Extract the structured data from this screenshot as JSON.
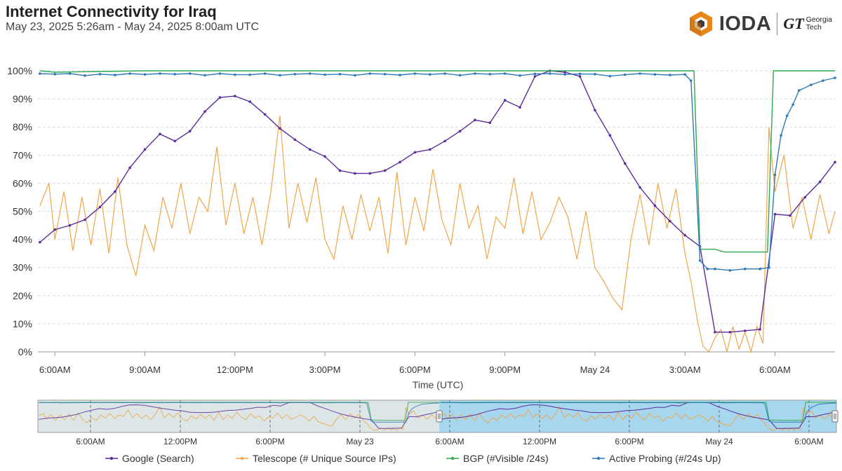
{
  "header": {
    "title": "Internet Connectivity for Iraq",
    "subtitle": "May 23, 2025 5:26am - May 24, 2025 8:00am UTC",
    "logo_name": "IODA",
    "partner_mark": "GT",
    "partner_line1": "Georgia",
    "partner_line2": "Tech"
  },
  "colors": {
    "google": "#5b2c9c",
    "telescope": "#f0a64a",
    "bgp": "#2fa84f",
    "probing": "#2f7ab8",
    "logo_orange": "#e8861a"
  },
  "icons": [
    "ioda-hexagon-icon",
    "georgia-tech-icon",
    "brush-handle-icon"
  ],
  "chart_data": {
    "type": "line",
    "title": "Internet Connectivity for Iraq",
    "xlabel": "Time (UTC)",
    "ylabel": "",
    "ylim": [
      0,
      100
    ],
    "y_unit": "%",
    "y_ticks": [
      "0%",
      "10%",
      "20%",
      "30%",
      "40%",
      "50%",
      "60%",
      "70%",
      "80%",
      "90%",
      "100%"
    ],
    "x_ticks": [
      {
        "label": "6:00AM",
        "h": 0
      },
      {
        "label": "9:00AM",
        "h": 3
      },
      {
        "label": "12:00PM",
        "h": 6
      },
      {
        "label": "3:00PM",
        "h": 9
      },
      {
        "label": "6:00PM",
        "h": 12
      },
      {
        "label": "9:00PM",
        "h": 15
      },
      {
        "label": "May 24",
        "h": 18
      },
      {
        "label": "3:00AM",
        "h": 21
      },
      {
        "label": "6:00AM",
        "h": 24
      }
    ],
    "x_range_hours_from_2025_05_23_06_00": [
      -0.567,
      26.0
    ],
    "grid": true,
    "legend_position": "bottom",
    "series": [
      {
        "key": "google",
        "name": "Google (Search)",
        "points": [
          [
            -0.5,
            39
          ],
          [
            0,
            43.5
          ],
          [
            0.5,
            45
          ],
          [
            1,
            47
          ],
          [
            1.5,
            51.5
          ],
          [
            2,
            57
          ],
          [
            2.5,
            65.5
          ],
          [
            3,
            72
          ],
          [
            3.5,
            77.5
          ],
          [
            4,
            75
          ],
          [
            4.5,
            78.5
          ],
          [
            5,
            85.5
          ],
          [
            5.5,
            90.5
          ],
          [
            6,
            91
          ],
          [
            6.5,
            89
          ],
          [
            7,
            84.5
          ],
          [
            7.5,
            79.5
          ],
          [
            8,
            75.5
          ],
          [
            8.5,
            72
          ],
          [
            9,
            69.5
          ],
          [
            9.5,
            64.5
          ],
          [
            10,
            63.5
          ],
          [
            10.5,
            63.5
          ],
          [
            11,
            64.5
          ],
          [
            11.5,
            67.5
          ],
          [
            12,
            71
          ],
          [
            12.5,
            72
          ],
          [
            13,
            75
          ],
          [
            13.5,
            78.5
          ],
          [
            14,
            82.5
          ],
          [
            14.5,
            81.5
          ],
          [
            15,
            89.5
          ],
          [
            15.5,
            87
          ],
          [
            16,
            98
          ],
          [
            16.5,
            100
          ],
          [
            17,
            99.5
          ],
          [
            17.5,
            98
          ],
          [
            18,
            86
          ],
          [
            18.5,
            77
          ],
          [
            19,
            67
          ],
          [
            19.5,
            58.5
          ],
          [
            20,
            52
          ],
          [
            20.5,
            46.5
          ],
          [
            21,
            41.5
          ],
          [
            21.5,
            37.5
          ],
          [
            22,
            7
          ],
          [
            22.5,
            7
          ],
          [
            23,
            7.5
          ],
          [
            23.5,
            8
          ],
          [
            24,
            49
          ],
          [
            24.5,
            48.5
          ],
          [
            25,
            55
          ],
          [
            25.5,
            60.5
          ],
          [
            26,
            67.5
          ]
        ]
      },
      {
        "key": "telescope",
        "name": "Telescope (# Unique Source IPs)",
        "points": [
          [
            -0.5,
            52
          ],
          [
            -0.2,
            60
          ],
          [
            0,
            40
          ],
          [
            0.3,
            57
          ],
          [
            0.6,
            36
          ],
          [
            0.9,
            55
          ],
          [
            1.2,
            38
          ],
          [
            1.5,
            58
          ],
          [
            1.8,
            35
          ],
          [
            2.1,
            62
          ],
          [
            2.4,
            38
          ],
          [
            2.7,
            27
          ],
          [
            3,
            45
          ],
          [
            3.3,
            36
          ],
          [
            3.6,
            55
          ],
          [
            3.9,
            44
          ],
          [
            4.2,
            60
          ],
          [
            4.5,
            42
          ],
          [
            4.8,
            55
          ],
          [
            5.1,
            50
          ],
          [
            5.4,
            73
          ],
          [
            5.7,
            45
          ],
          [
            6,
            60
          ],
          [
            6.3,
            42
          ],
          [
            6.6,
            55
          ],
          [
            6.9,
            38
          ],
          [
            7.2,
            57
          ],
          [
            7.5,
            84
          ],
          [
            7.8,
            44
          ],
          [
            8.1,
            60
          ],
          [
            8.4,
            46
          ],
          [
            8.7,
            62
          ],
          [
            9,
            40
          ],
          [
            9.3,
            33
          ],
          [
            9.6,
            52
          ],
          [
            9.9,
            40
          ],
          [
            10.2,
            56
          ],
          [
            10.5,
            43
          ],
          [
            10.8,
            55
          ],
          [
            11.1,
            35
          ],
          [
            11.4,
            64
          ],
          [
            11.7,
            38
          ],
          [
            12,
            55
          ],
          [
            12.3,
            43
          ],
          [
            12.6,
            65
          ],
          [
            12.9,
            47
          ],
          [
            13.2,
            38
          ],
          [
            13.5,
            60
          ],
          [
            13.8,
            44
          ],
          [
            14.1,
            52
          ],
          [
            14.4,
            33
          ],
          [
            14.7,
            48
          ],
          [
            15,
            44
          ],
          [
            15.3,
            62
          ],
          [
            15.6,
            42
          ],
          [
            15.9,
            57
          ],
          [
            16.2,
            40
          ],
          [
            16.5,
            46
          ],
          [
            16.8,
            55
          ],
          [
            17.1,
            48
          ],
          [
            17.4,
            33
          ],
          [
            17.7,
            50
          ],
          [
            18,
            30
          ],
          [
            18.3,
            25
          ],
          [
            18.6,
            19
          ],
          [
            18.9,
            15
          ],
          [
            19.2,
            40
          ],
          [
            19.5,
            56
          ],
          [
            19.8,
            38
          ],
          [
            20.1,
            60
          ],
          [
            20.4,
            44
          ],
          [
            20.7,
            58
          ],
          [
            21,
            35
          ],
          [
            21.2,
            25
          ],
          [
            21.4,
            12
          ],
          [
            21.6,
            2
          ],
          [
            21.8,
            0
          ],
          [
            22,
            5
          ],
          [
            22.2,
            8
          ],
          [
            22.4,
            0
          ],
          [
            22.6,
            9
          ],
          [
            22.8,
            1
          ],
          [
            23,
            7
          ],
          [
            23.2,
            0
          ],
          [
            23.4,
            9
          ],
          [
            23.6,
            3
          ],
          [
            23.8,
            80
          ],
          [
            24,
            57
          ],
          [
            24.3,
            70
          ],
          [
            24.6,
            44
          ],
          [
            24.9,
            55
          ],
          [
            25.2,
            40
          ],
          [
            25.5,
            56
          ],
          [
            25.8,
            42
          ],
          [
            26,
            50
          ]
        ]
      },
      {
        "key": "bgp",
        "name": "BGP (#Visible /24s)",
        "points": [
          [
            -0.5,
            100
          ],
          [
            0,
            99.5
          ],
          [
            3,
            100
          ],
          [
            6,
            100
          ],
          [
            9,
            100
          ],
          [
            12,
            100
          ],
          [
            15,
            100
          ],
          [
            18,
            100
          ],
          [
            21,
            100
          ],
          [
            21.3,
            100
          ],
          [
            21.5,
            36.5
          ],
          [
            22,
            36.5
          ],
          [
            22.3,
            35.5
          ],
          [
            23.5,
            35.5
          ],
          [
            23.75,
            35.5
          ],
          [
            23.95,
            100
          ],
          [
            26,
            100
          ]
        ]
      },
      {
        "key": "probing",
        "name": "Active Probing (#/24s Up)",
        "points": [
          [
            -0.5,
            99
          ],
          [
            0,
            98.8
          ],
          [
            0.5,
            99
          ],
          [
            1,
            98.3
          ],
          [
            1.5,
            98.8
          ],
          [
            2,
            98.5
          ],
          [
            2.5,
            99
          ],
          [
            3,
            98.7
          ],
          [
            3.5,
            99
          ],
          [
            4,
            98.8
          ],
          [
            4.5,
            99
          ],
          [
            5,
            98.4
          ],
          [
            5.5,
            99
          ],
          [
            6,
            98.6
          ],
          [
            6.5,
            98.6
          ],
          [
            7,
            99
          ],
          [
            7.5,
            98.4
          ],
          [
            8,
            98.8
          ],
          [
            8.5,
            99
          ],
          [
            9,
            98.6
          ],
          [
            9.5,
            98.8
          ],
          [
            10,
            98.4
          ],
          [
            10.5,
            99
          ],
          [
            11,
            98.8
          ],
          [
            11.5,
            98.5
          ],
          [
            12,
            99
          ],
          [
            12.5,
            98.7
          ],
          [
            13,
            99
          ],
          [
            13.5,
            98.4
          ],
          [
            14,
            99
          ],
          [
            14.5,
            98.8
          ],
          [
            15,
            99
          ],
          [
            15.5,
            98.3
          ],
          [
            16,
            98.9
          ],
          [
            16.5,
            99
          ],
          [
            17,
            98.7
          ],
          [
            17.5,
            98.9
          ],
          [
            18,
            98.8
          ],
          [
            18.5,
            98.1
          ],
          [
            19,
            98.6
          ],
          [
            19.5,
            99
          ],
          [
            20,
            98.7
          ],
          [
            20.5,
            98.5
          ],
          [
            21,
            98.7
          ],
          [
            21.2,
            96.5
          ],
          [
            21.5,
            32.5
          ],
          [
            21.75,
            29.5
          ],
          [
            22,
            29.5
          ],
          [
            22.5,
            29
          ],
          [
            23,
            29.5
          ],
          [
            23.5,
            29.5
          ],
          [
            23.8,
            30
          ],
          [
            24,
            63
          ],
          [
            24.2,
            77
          ],
          [
            24.4,
            84
          ],
          [
            24.6,
            88
          ],
          [
            24.8,
            93
          ],
          [
            25.2,
            95
          ],
          [
            25.6,
            96.5
          ],
          [
            26,
            97.5
          ]
        ]
      }
    ],
    "overview": {
      "x_ticks": [
        "6:00AM",
        "12:00PM",
        "6:00PM",
        "May 23",
        "6:00AM",
        "12:00PM",
        "6:00PM",
        "May 24",
        "6:00AM"
      ],
      "selected_range": [
        "May 23, 2025 5:26am",
        "May 24, 2025 8:00am"
      ]
    }
  }
}
